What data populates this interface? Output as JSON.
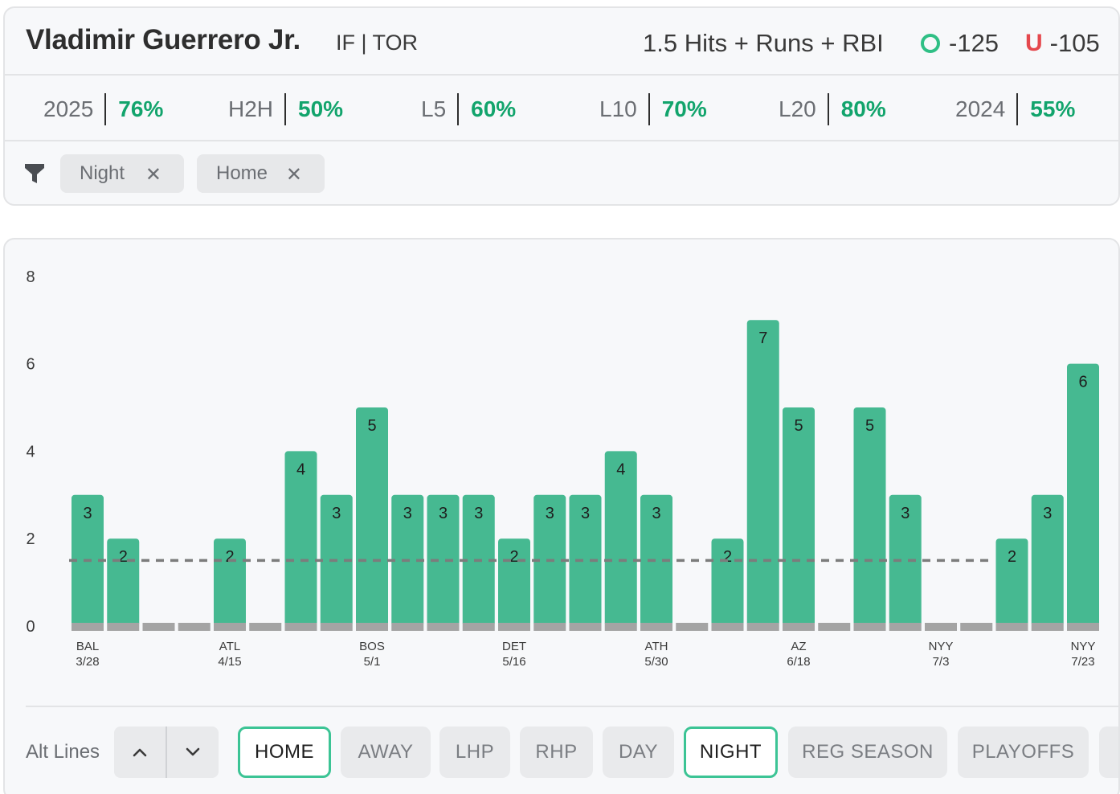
{
  "header": {
    "player_name": "Vladimir Guerrero Jr.",
    "player_meta": "IF | TOR",
    "prop_line": "1.5 Hits + Runs + RBI",
    "over_odds": "-125",
    "under_icon": "U",
    "under_odds": "-105"
  },
  "stats": [
    {
      "label": "2025",
      "value": "76%"
    },
    {
      "label": "H2H",
      "value": "50%"
    },
    {
      "label": "L5",
      "value": "60%"
    },
    {
      "label": "L10",
      "value": "70%"
    },
    {
      "label": "L20",
      "value": "80%"
    },
    {
      "label": "2024",
      "value": "55%"
    }
  ],
  "filters": {
    "chips": [
      {
        "label": "Night",
        "close": "✕"
      },
      {
        "label": "Home",
        "close": "✕"
      }
    ]
  },
  "chart_data": {
    "type": "bar",
    "title": "",
    "xlabel": "",
    "ylabel": "",
    "ylim": [
      0,
      8
    ],
    "y_ticks": [
      0,
      2,
      4,
      6,
      8
    ],
    "line": 1.5,
    "values": [
      3,
      2,
      0,
      0,
      2,
      0,
      4,
      3,
      5,
      3,
      3,
      3,
      2,
      3,
      3,
      4,
      3,
      0,
      2,
      7,
      5,
      0,
      5,
      3,
      0,
      0,
      2,
      3,
      6
    ],
    "x_labels": [
      {
        "index": 0,
        "team": "BAL",
        "date": "3/28"
      },
      {
        "index": 4,
        "team": "ATL",
        "date": "4/15"
      },
      {
        "index": 8,
        "team": "BOS",
        "date": "5/1"
      },
      {
        "index": 12,
        "team": "DET",
        "date": "5/16"
      },
      {
        "index": 16,
        "team": "ATH",
        "date": "5/30"
      },
      {
        "index": 20,
        "team": "AZ",
        "date": "6/18"
      },
      {
        "index": 24,
        "team": "NYY",
        "date": "7/3"
      },
      {
        "index": 28,
        "team": "NYY",
        "date": "7/23"
      }
    ],
    "colors": {
      "hit": "#46b991",
      "base": "#a4a4a4",
      "line": "#7c7c7c",
      "text": "#1e1e1e",
      "axis_text": "#3a3a3a"
    }
  },
  "bottom_bar": {
    "alt_lines_label": "Alt Lines",
    "tabs": [
      {
        "label": "HOME",
        "active": true
      },
      {
        "label": "AWAY",
        "active": false
      },
      {
        "label": "LHP",
        "active": false
      },
      {
        "label": "RHP",
        "active": false
      },
      {
        "label": "DAY",
        "active": false
      },
      {
        "label": "NIGHT",
        "active": true
      },
      {
        "label": "REG SEASON",
        "active": false
      },
      {
        "label": "PLAYOFFS",
        "active": false
      }
    ]
  }
}
